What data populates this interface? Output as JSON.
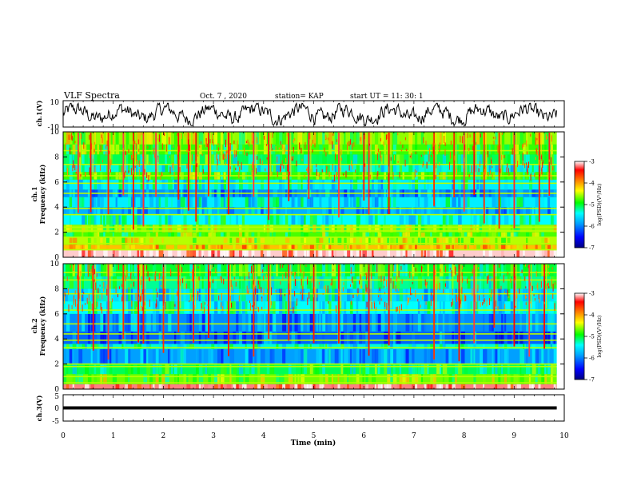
{
  "header": {
    "title": "VLF Spectra",
    "date": "Oct. 7  , 2020",
    "station": "station= KAP",
    "start": "start  UT  =   11: 30: 1"
  },
  "chart_data": [
    {
      "type": "line",
      "name": "ch1-waveform",
      "ylabel": "ch.1(V)",
      "ylim": [
        -10,
        10
      ],
      "yticks": [
        "10",
        "-10"
      ],
      "xlim": [
        0,
        10
      ],
      "duration_min": 9.85
    },
    {
      "type": "heatmap",
      "name": "ch1-spectrogram",
      "ylabel_top": "ch.1",
      "ylabel": "Frequency  (kHz)",
      "ylim": [
        0,
        10
      ],
      "yticks": [
        "0",
        "2",
        "4",
        "6",
        "8",
        "10"
      ],
      "xlim": [
        0,
        10
      ],
      "colorbar": {
        "label": "log(PSD)(V²/Hz)",
        "range": [
          -7,
          -3
        ],
        "ticks": [
          "-3",
          "-4",
          "-5",
          "-6",
          "-7"
        ],
        "colors": [
          "#000080",
          "#0000ff",
          "#00a0ff",
          "#00ffff",
          "#00ff00",
          "#ffff00",
          "#ff8000",
          "#ff0000",
          "#ffffff"
        ]
      },
      "bands": [
        {
          "f": [
            0.0,
            0.6
          ],
          "level": 0.98
        },
        {
          "f": [
            0.6,
            1.0
          ],
          "level": 0.72
        },
        {
          "f": [
            1.0,
            1.6
          ],
          "level": 0.62
        },
        {
          "f": [
            1.6,
            2.0
          ],
          "level": 0.56
        },
        {
          "f": [
            2.0,
            2.6
          ],
          "level": 0.6
        },
        {
          "f": [
            2.6,
            3.4
          ],
          "level": 0.4
        },
        {
          "f": [
            3.4,
            4.0
          ],
          "level": 0.3
        },
        {
          "f": [
            4.0,
            4.8
          ],
          "level": 0.38
        },
        {
          "f": [
            4.8,
            5.4
          ],
          "level": 0.27
        },
        {
          "f": [
            5.4,
            6.2
          ],
          "level": 0.38
        },
        {
          "f": [
            6.2,
            6.8
          ],
          "level": 0.55
        },
        {
          "f": [
            6.8,
            7.4
          ],
          "level": 0.42
        },
        {
          "f": [
            7.4,
            8.2
          ],
          "level": 0.48
        },
        {
          "f": [
            8.2,
            9.0
          ],
          "level": 0.55
        },
        {
          "f": [
            9.0,
            10.0
          ],
          "level": 0.6
        }
      ],
      "lines": [
        0.6,
        1.1,
        1.6,
        2.1,
        2.4,
        3.4,
        3.9,
        5.1,
        5.9,
        6.5,
        7.4,
        8.5
      ],
      "spikes": [
        0.3,
        0.55,
        0.9,
        1.2,
        1.4,
        1.6,
        1.85,
        2.3,
        2.5,
        2.65,
        2.9,
        3.3,
        3.8,
        4.1,
        4.5,
        4.9,
        5.5,
        6.0,
        6.1,
        6.5,
        7.4,
        7.8,
        8.0,
        8.2,
        8.4,
        8.7,
        9.0,
        9.5,
        9.7
      ]
    },
    {
      "type": "heatmap",
      "name": "ch2-spectrogram",
      "ylabel_top": "ch.2",
      "ylabel": "Frequency  (kHz)",
      "ylim": [
        0,
        10
      ],
      "yticks": [
        "0",
        "2",
        "4",
        "6",
        "8",
        "10"
      ],
      "xlim": [
        0,
        10
      ],
      "colorbar": {
        "label": "log(PSD)(V²/Hz)",
        "range": [
          -7,
          -3
        ],
        "ticks": [
          "-3",
          "-4",
          "-5",
          "-6",
          "-7"
        ],
        "colors": [
          "#000080",
          "#0000ff",
          "#00a0ff",
          "#00ffff",
          "#00ff00",
          "#ffff00",
          "#ff8000",
          "#ff0000",
          "#ffffff"
        ]
      },
      "bands": [
        {
          "f": [
            0.0,
            0.4
          ],
          "level": 0.95
        },
        {
          "f": [
            0.4,
            1.2
          ],
          "level": 0.58
        },
        {
          "f": [
            1.2,
            2.0
          ],
          "level": 0.48
        },
        {
          "f": [
            2.0,
            3.2
          ],
          "level": 0.28
        },
        {
          "f": [
            3.2,
            3.6
          ],
          "level": 0.42
        },
        {
          "f": [
            3.6,
            4.6
          ],
          "level": 0.22
        },
        {
          "f": [
            4.6,
            6.0
          ],
          "level": 0.26
        },
        {
          "f": [
            6.0,
            7.0
          ],
          "level": 0.4
        },
        {
          "f": [
            7.0,
            8.0
          ],
          "level": 0.36
        },
        {
          "f": [
            8.0,
            9.0
          ],
          "level": 0.45
        },
        {
          "f": [
            9.0,
            10.0
          ],
          "level": 0.5
        }
      ],
      "lines": [
        0.5,
        1.0,
        1.8,
        2.0,
        3.3,
        3.9,
        4.4,
        5.2,
        6.3,
        7.6,
        8.7,
        9.3
      ],
      "spikes": [
        0.3,
        0.6,
        0.9,
        1.2,
        1.5,
        1.6,
        2.0,
        2.3,
        2.6,
        2.9,
        3.3,
        3.8,
        4.1,
        4.5,
        5.0,
        5.5,
        6.1,
        6.5,
        7.4,
        7.9,
        8.2,
        8.6,
        9.0,
        9.3,
        9.6
      ]
    },
    {
      "type": "line",
      "name": "ch3-waveform",
      "ylabel": "ch.3(V)",
      "ylim": [
        -5,
        5
      ],
      "yticks": [
        "5",
        "0",
        "-5"
      ],
      "xlim": [
        0,
        10
      ],
      "xlabel": "Time  (min)",
      "xticks": [
        "0",
        "1",
        "2",
        "3",
        "4",
        "5",
        "6",
        "7",
        "8",
        "9",
        "10"
      ],
      "duration_min": 9.85,
      "level_range": [
        -0.6,
        0.6
      ]
    }
  ]
}
